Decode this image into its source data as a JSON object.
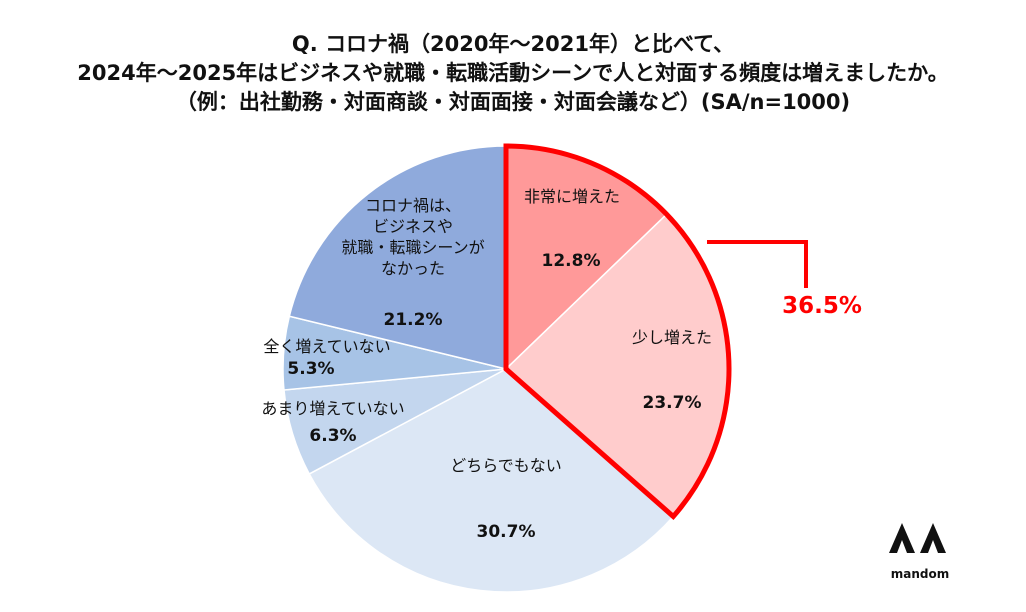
{
  "chart_data": {
    "type": "pie",
    "title_lines": [
      "Q. コロナ禍（2020年～2021年）と比べて、",
      "2024年～2025年はビジネスや就職・転職活動シーンで人と対面する頻度は増えましたか。",
      "（例：出社勤務・対面商談・対面面接・対面会議など）(SA/n=1000)"
    ],
    "slices": [
      {
        "label_lines": [
          "非常に増えた"
        ],
        "value": 12.8,
        "display": "12.8%",
        "color": "#ff9999",
        "highlight": true
      },
      {
        "label_lines": [
          "少し増えた"
        ],
        "value": 23.7,
        "display": "23.7%",
        "color": "#ffcccc",
        "highlight": true
      },
      {
        "label_lines": [
          "どちらでもない"
        ],
        "value": 30.7,
        "display": "30.7%",
        "color": "#dce7f5",
        "highlight": false
      },
      {
        "label_lines": [
          "あまり増えていない"
        ],
        "value": 6.3,
        "display": "6.3%",
        "color": "#c3d6ee",
        "highlight": false
      },
      {
        "label_lines": [
          "全く増えていない"
        ],
        "value": 5.3,
        "display": "5.3%",
        "color": "#a7c3e6",
        "highlight": false
      },
      {
        "label_lines": [
          "コロナ禍は、",
          "ビジネスや",
          "就職・転職シーンが",
          "なかった"
        ],
        "value": 21.2,
        "display": "21.2%",
        "color": "#8faadc",
        "highlight": false
      }
    ],
    "callout": {
      "text": "36.5%",
      "color": "#ff0000"
    }
  },
  "brand": {
    "name": "mandom",
    "logo_color": "#111111"
  }
}
